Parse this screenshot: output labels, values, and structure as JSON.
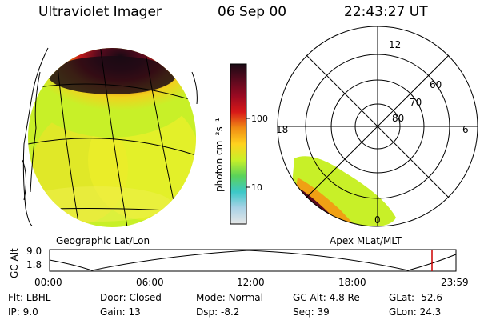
{
  "header": {
    "title": "Ultraviolet Imager",
    "date": "06 Sep 00",
    "time": "22:43:27 UT"
  },
  "left_panel": {
    "label": "Geographic Lat/Lon"
  },
  "colorbar": {
    "unit_label": "photon cm⁻²s⁻¹",
    "ticks": [
      "100",
      "10"
    ],
    "colors": [
      "#1a0a14",
      "#5a0a1e",
      "#9a0a22",
      "#d81818",
      "#f08c14",
      "#ffd21e",
      "#c8f028",
      "#5ad25a",
      "#3cc8c8",
      "#aad2e6",
      "#e6e6e6"
    ]
  },
  "polar_panel": {
    "label": "Apex MLat/MLT",
    "mlt_labels": [
      "12",
      "18",
      "6",
      "0"
    ],
    "lat_labels": [
      "60",
      "70",
      "80"
    ]
  },
  "altitude_plot": {
    "ylabel": "GC Alt",
    "y_ticks": [
      "9.0",
      "1.8"
    ],
    "x_ticks": [
      "00:00",
      "06:00",
      "12:00",
      "18:00",
      "23:59"
    ],
    "current_time_marker_color": "#cc0000"
  },
  "status": {
    "rows": [
      [
        {
          "label": "Flt:",
          "value": "LBHL"
        },
        {
          "label": "Door:",
          "value": "Closed"
        },
        {
          "label": "Mode:",
          "value": "Normal"
        },
        {
          "label": "GC Alt:",
          "value": "4.8 Re"
        },
        {
          "label": "GLat:",
          "value": "-52.6"
        }
      ],
      [
        {
          "label": "IP:",
          "value": "9.0"
        },
        {
          "label": "Gain:",
          "value": "13"
        },
        {
          "label": "Dsp:",
          "value": "-8.2"
        },
        {
          "label": "Seq:",
          "value": "39"
        },
        {
          "label": "GLon:",
          "value": "24.3"
        }
      ]
    ]
  }
}
